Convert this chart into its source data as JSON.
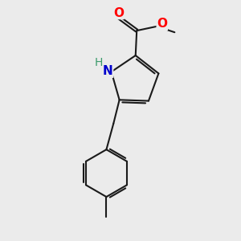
{
  "bg_color": "#ebebeb",
  "bond_color": "#1a1a1a",
  "bond_width": 1.5,
  "atom_colors": {
    "N": "#0000cc",
    "O": "#ff0000",
    "H": "#3a9a6a",
    "C": "#1a1a1a"
  }
}
